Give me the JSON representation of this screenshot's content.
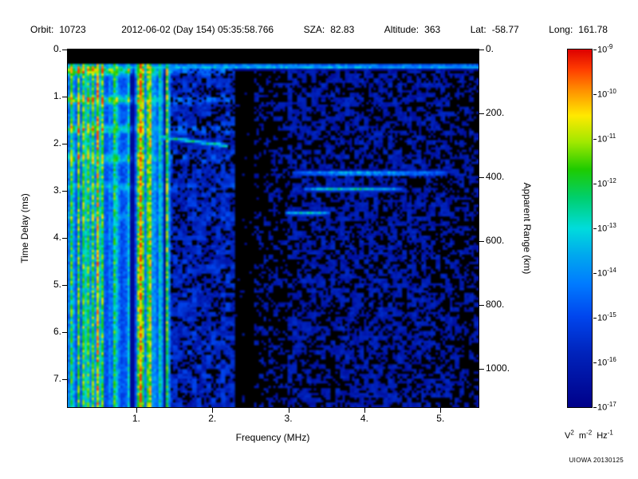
{
  "header": {
    "fields": [
      {
        "label": "Orbit:",
        "value": "10723"
      },
      {
        "label": "",
        "value": "2012-06-02 (Day 154) 05:35:58.766"
      },
      {
        "label": "SZA:",
        "value": "82.83"
      },
      {
        "label": "Altitude:",
        "value": "363"
      },
      {
        "label": "Lat:",
        "value": "-58.77"
      },
      {
        "label": "Long:",
        "value": "161.78"
      }
    ]
  },
  "chart_data": {
    "type": "heatmap",
    "title": "",
    "xlabel": "Frequency (MHz)",
    "ylabel_left": "Time Delay (ms)",
    "ylabel_right": "Apparent Range (km)",
    "credit": "UIOWA 20130125",
    "x_axis": {
      "min": 0.1,
      "max": 5.5,
      "ticks": [
        1,
        2,
        3,
        4,
        5
      ],
      "tick_labels": [
        "1.",
        "2.",
        "3.",
        "4.",
        "5."
      ]
    },
    "y_axis_left": {
      "min": 0,
      "max": 7.6,
      "ticks": [
        0,
        1,
        2,
        3,
        4,
        5,
        6,
        7
      ],
      "tick_labels": [
        "0.",
        "1.",
        "2.",
        "3.",
        "4.",
        "5.",
        "6.",
        "7."
      ]
    },
    "y_axis_right": {
      "min": 0,
      "max": 1120,
      "ticks": [
        0,
        200,
        400,
        600,
        800,
        1000
      ],
      "tick_labels": [
        "0.",
        "200.",
        "400.",
        "600.",
        "800.",
        "1000."
      ]
    },
    "colorbar": {
      "scale": "log",
      "tick_base": "10",
      "tick_exponents": [
        "-9",
        "-10",
        "-11",
        "-12",
        "-13",
        "-14",
        "-15",
        "-16",
        "-17"
      ],
      "unit_parts": {
        "base1": "V",
        "exp1": "2",
        "base2": "m",
        "exp2": "-2",
        "base3": "Hz",
        "exp3": "-1"
      },
      "stops": [
        {
          "pos": 0.0,
          "color": "#dd0000"
        },
        {
          "pos": 0.055,
          "color": "#ff3c00"
        },
        {
          "pos": 0.115,
          "color": "#ff9100"
        },
        {
          "pos": 0.185,
          "color": "#ffe900"
        },
        {
          "pos": 0.26,
          "color": "#9fe800"
        },
        {
          "pos": 0.335,
          "color": "#1ecb00"
        },
        {
          "pos": 0.415,
          "color": "#00cf6e"
        },
        {
          "pos": 0.5,
          "color": "#00dcdc"
        },
        {
          "pos": 0.575,
          "color": "#00a8ee"
        },
        {
          "pos": 0.655,
          "color": "#007bff"
        },
        {
          "pos": 0.745,
          "color": "#0046ee"
        },
        {
          "pos": 0.85,
          "color": "#0023bb"
        },
        {
          "pos": 1.0,
          "color": "#000089"
        }
      ]
    },
    "features": {
      "description": "Qualitative structures visible in the radar-sounder ionogram: broadband low-frequency noise with electron plasma harmonic lines, cyclotron echo horizontal bands, a surface reflection line near 0.36 ms, an ionospheric echo trace near 2 ms, oblique surface echoes near 2.6-3.5 ms, blue background speckle and a quiet dark band near 2.4 MHz.",
      "top_black_band_ms": 0.28,
      "surface_reflection_line": {
        "delay_ms": 0.36,
        "freq_range_mhz": [
          0.1,
          5.5
        ]
      },
      "electron_plasma_harmonic_lines_mhz": [
        0.35,
        0.5,
        0.72,
        1.05,
        1.18,
        1.32
      ],
      "electron_plasma_harmonic_strengths": [
        0.6,
        0.85,
        0.65,
        0.95,
        0.75,
        0.6
      ],
      "low_frequency_noise_band_mhz": [
        0.1,
        1.45
      ],
      "cyclotron_echo_spacing_ms": 0.62,
      "ionospheric_echo_trace": {
        "freq_range_mhz": [
          1.3,
          2.2
        ],
        "delay_start_ms": 1.85,
        "delay_end_ms": 2.05
      },
      "oblique_surface_echoes": [
        {
          "freq_range_mhz": [
            3.05,
            5.1
          ],
          "delay_ms": 2.63
        },
        {
          "freq_range_mhz": [
            3.2,
            4.5
          ],
          "delay_ms": 2.97
        },
        {
          "freq_range_mhz": [
            2.95,
            3.55
          ],
          "delay_ms": 3.48
        }
      ],
      "quiet_band_mhz": [
        2.3,
        2.55
      ],
      "noise_seed": 20130125
    }
  }
}
